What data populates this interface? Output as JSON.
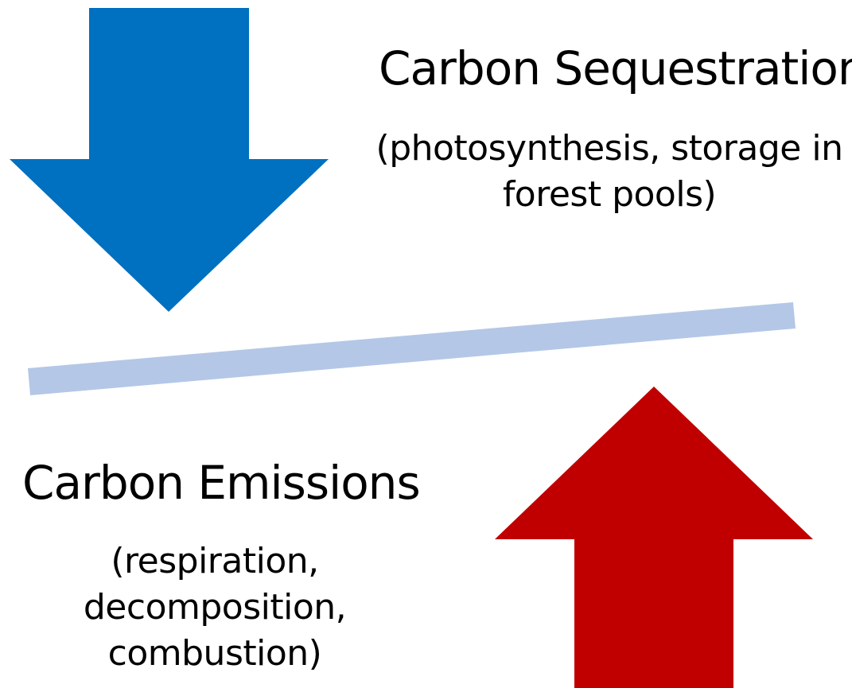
{
  "sequestration": {
    "title": "Carbon Sequestration",
    "description": [
      "(photosynthesis, storage in",
      "forest pools)"
    ]
  },
  "emissions": {
    "title": "Carbon Emissions",
    "description": [
      "(respiration,",
      "decomposition,",
      "combustion)"
    ]
  }
}
